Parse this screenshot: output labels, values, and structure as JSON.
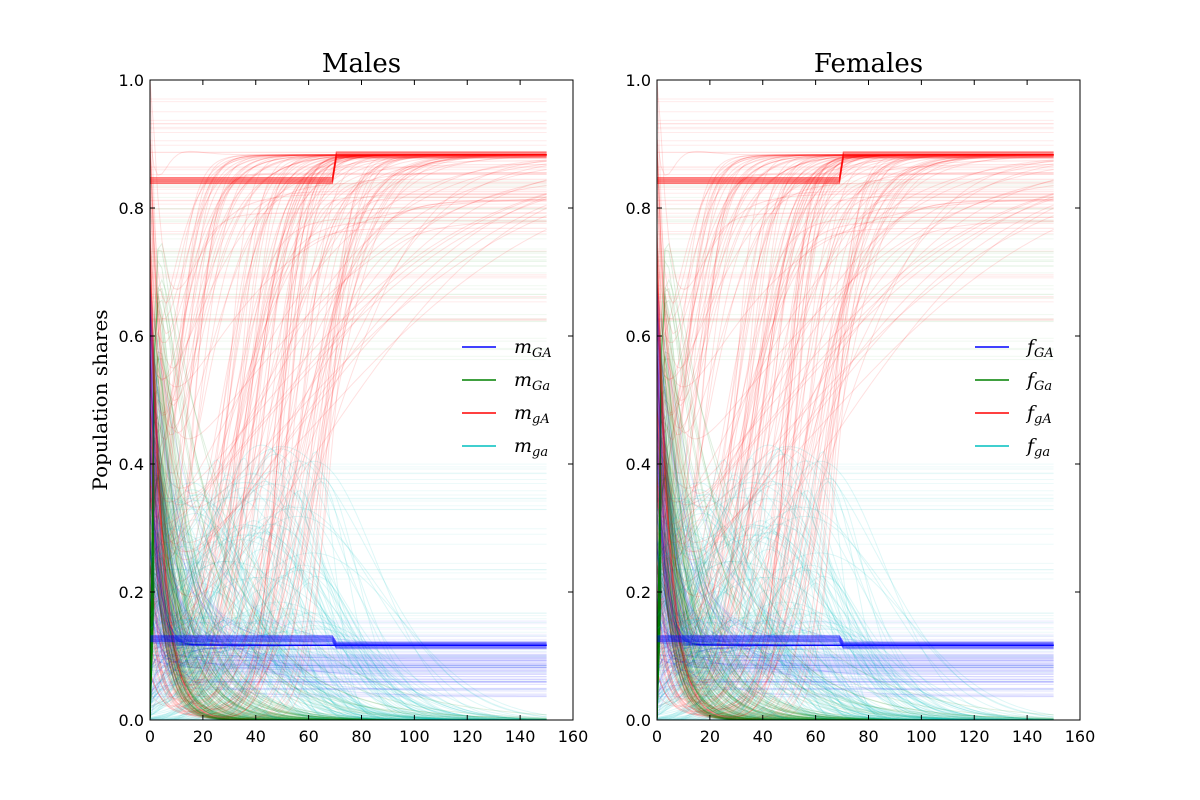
{
  "chart_data": [
    {
      "type": "line",
      "title": "Males",
      "ylabel": "Population shares",
      "xlim": [
        0,
        160
      ],
      "ylim": [
        0,
        1.0
      ],
      "xticks": [
        "0",
        "20",
        "40",
        "60",
        "80",
        "100",
        "120",
        "140",
        "160"
      ],
      "yticks": [
        "0.0",
        "0.2",
        "0.4",
        "0.6",
        "0.8",
        "1.0"
      ],
      "x_end": 150,
      "legend_position": "center-right",
      "series": [
        {
          "name": "m",
          "sub": "GA",
          "color": "#0000ff",
          "equilibrium": 0.117
        },
        {
          "name": "m",
          "sub": "Ga",
          "color": "#008000",
          "equilibrium": 0.0
        },
        {
          "name": "m",
          "sub": "gA",
          "color": "#ff0000",
          "equilibrium": 0.883
        },
        {
          "name": "m",
          "sub": "ga",
          "color": "#00bfbf",
          "equilibrium": 0.0
        }
      ]
    },
    {
      "type": "line",
      "title": "Females",
      "ylabel": "",
      "xlim": [
        0,
        160
      ],
      "ylim": [
        0,
        1.0
      ],
      "xticks": [
        "0",
        "20",
        "40",
        "60",
        "80",
        "100",
        "120",
        "140",
        "160"
      ],
      "yticks": [
        "0.0",
        "0.2",
        "0.4",
        "0.6",
        "0.8",
        "1.0"
      ],
      "x_end": 150,
      "legend_position": "center-right",
      "series": [
        {
          "name": "f",
          "sub": "GA",
          "color": "#0000ff",
          "equilibrium": 0.117
        },
        {
          "name": "f",
          "sub": "Ga",
          "color": "#008000",
          "equilibrium": 0.0
        },
        {
          "name": "f",
          "sub": "gA",
          "color": "#ff0000",
          "equilibrium": 0.883
        },
        {
          "name": "f",
          "sub": "ga",
          "color": "#00bfbf",
          "equilibrium": 0.0
        }
      ]
    }
  ]
}
